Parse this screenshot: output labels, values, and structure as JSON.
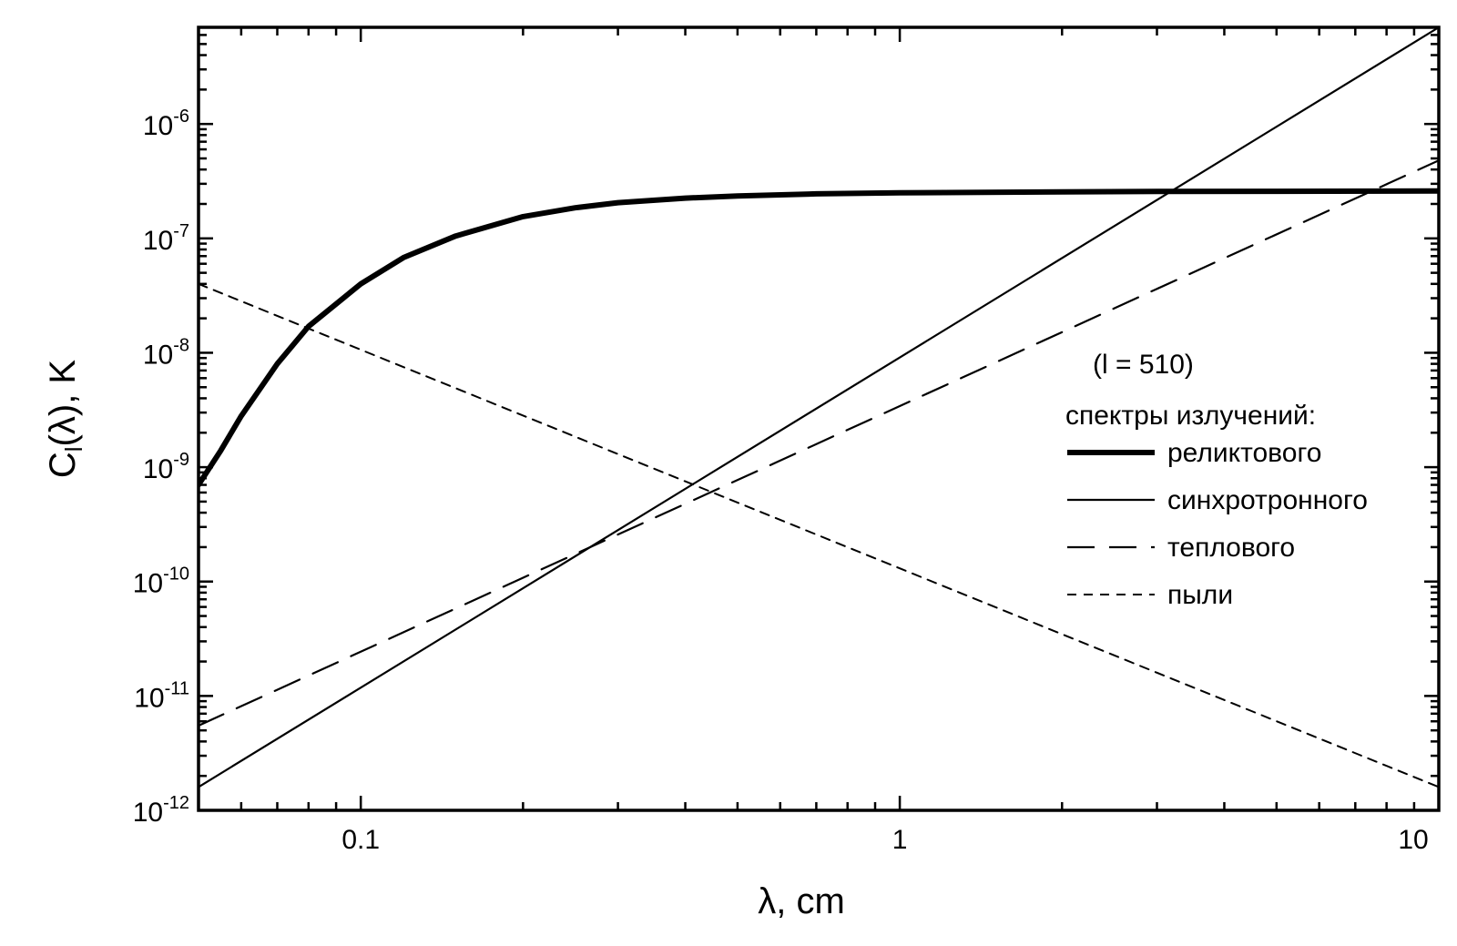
{
  "chart_data": {
    "type": "line",
    "title": "",
    "xlabel": "λ, cm",
    "ylabel": "C_l(λ), K",
    "xscale": "log",
    "yscale": "log",
    "xlim": [
      0.05,
      10
    ],
    "ylim": [
      1e-12,
      7e-06
    ],
    "x_ticks": [
      {
        "value": 0.1,
        "label": "0.1"
      },
      {
        "value": 1,
        "label": "1"
      },
      {
        "value": 10,
        "label": "10"
      }
    ],
    "y_ticks": [
      {
        "value": 1e-12,
        "base": "10",
        "exp": "-12"
      },
      {
        "value": 1e-11,
        "base": "10",
        "exp": "-11"
      },
      {
        "value": 1e-10,
        "base": "10",
        "exp": "-10"
      },
      {
        "value": 1e-09,
        "base": "10",
        "exp": "-9"
      },
      {
        "value": 1e-08,
        "base": "10",
        "exp": "-8"
      },
      {
        "value": 1e-07,
        "base": "10",
        "exp": "-7"
      },
      {
        "value": 1e-06,
        "base": "10",
        "exp": "-6"
      }
    ],
    "legend": {
      "placement": "right",
      "note": "(l = 510)",
      "heading": "спектры излучений:"
    },
    "series": [
      {
        "name": "реликтового",
        "style": "thick-solid",
        "x": [
          0.05,
          0.055,
          0.06,
          0.07,
          0.08,
          0.1,
          0.12,
          0.15,
          0.2,
          0.25,
          0.3,
          0.4,
          0.5,
          0.7,
          1,
          2,
          3,
          5,
          10
        ],
        "y": [
          7e-10,
          1.4e-09,
          2.8e-09,
          8e-09,
          1.7e-08,
          4e-08,
          6.8e-08,
          1.05e-07,
          1.55e-07,
          1.85e-07,
          2.05e-07,
          2.25e-07,
          2.35e-07,
          2.45e-07,
          2.5e-07,
          2.55e-07,
          2.57e-07,
          2.58e-07,
          2.6e-07
        ]
      },
      {
        "name": "синхротронного",
        "style": "thin-solid",
        "x": [
          0.05,
          10
        ],
        "y": [
          1.6e-12,
          7e-06
        ]
      },
      {
        "name": "теплового",
        "style": "long-dash",
        "x": [
          0.05,
          10
        ],
        "y": [
          5.5e-12,
          4.8e-07
        ]
      },
      {
        "name": "пыли",
        "style": "short-dash",
        "x": [
          0.05,
          10
        ],
        "y": [
          4e-08,
          1.6e-12
        ]
      }
    ]
  }
}
